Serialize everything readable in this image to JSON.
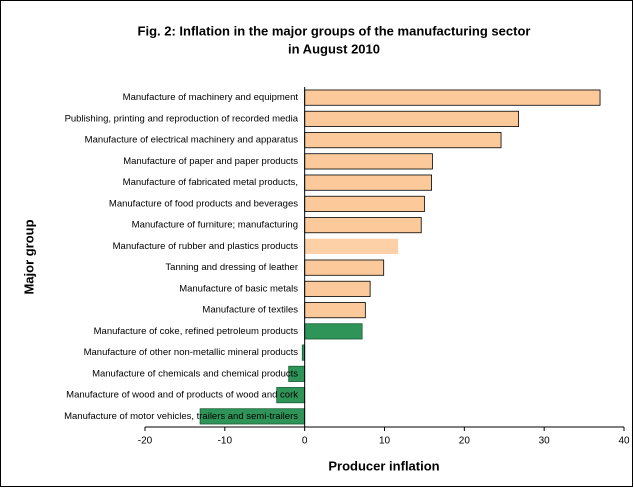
{
  "chart_data": {
    "type": "barh",
    "title": [
      "Fig. 2: Inflation in the major groups of the  manufacturing sector",
      "in August 2010"
    ],
    "xlabel": "Producer inflation",
    "ylabel": "Major group",
    "categories": [
      "Manufacture of machinery and equipment",
      "Publishing, printing and reproduction of recorded media",
      "Manufacture of electrical machinery and apparatus",
      "Manufacture of paper and paper products",
      "Manufacture of fabricated metal products,",
      "Manufacture of food products and beverages",
      "Manufacture of furniture; manufacturing",
      "Manufacture of rubber and plastics products",
      "Tanning and dressing of leather",
      "Manufacture of basic metals",
      "Manufacture of textiles",
      "Manufacture of coke, refined petroleum products",
      "Manufacture of other non-metallic mineral products",
      "Manufacture of chemicals and chemical products",
      "Manufacture of wood and of products of wood and cork",
      "Manufacture of motor vehicles, trailers and semi-trailers"
    ],
    "values": [
      37,
      26.8,
      24.6,
      16,
      15.9,
      15,
      14.6,
      11.7,
      9.9,
      8.2,
      7.6,
      7.2,
      -0.3,
      -2,
      -3.5,
      -13.1
    ],
    "colors": [
      "#fcc99b",
      "#fcc99b",
      "#fcc99b",
      "#fcc99b",
      "#fcc99b",
      "#fcc99b",
      "#fcc99b",
      "#fdd0a8",
      "#fcc99b",
      "#fcc99b",
      "#fcc99b",
      "#2e9458",
      "#2e9458",
      "#2e9458",
      "#2e9458",
      "#2e9458"
    ],
    "xlim": [
      -20,
      40
    ],
    "xticks": [
      -20,
      -10,
      0,
      10,
      20,
      30,
      40
    ]
  }
}
